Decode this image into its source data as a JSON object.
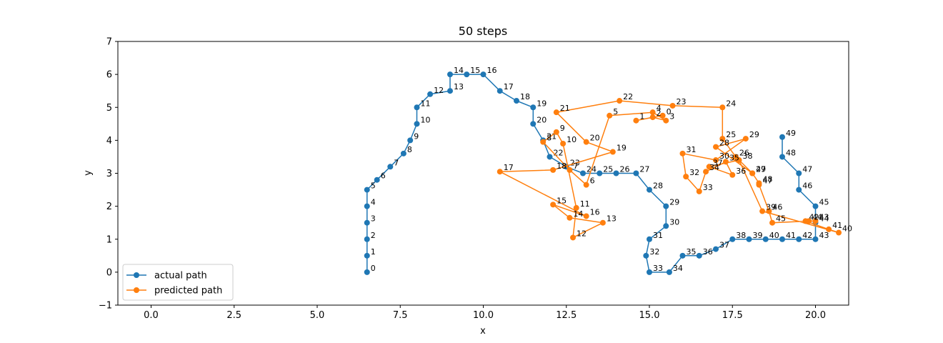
{
  "chart_data": {
    "type": "line",
    "title": "50 steps",
    "xlabel": "x",
    "ylabel": "y",
    "xlim": [
      -1.0,
      21.0
    ],
    "ylim": [
      -1,
      7
    ],
    "xticks": [
      0.0,
      2.5,
      5.0,
      7.5,
      10.0,
      12.5,
      15.0,
      17.5,
      20.0
    ],
    "xtick_labels": [
      "0.0",
      "2.5",
      "5.0",
      "7.5",
      "10.0",
      "12.5",
      "15.0",
      "17.5",
      "20.0"
    ],
    "yticks": [
      -1,
      0,
      1,
      2,
      3,
      4,
      5,
      6,
      7
    ],
    "ytick_labels": [
      "−1",
      "0",
      "1",
      "2",
      "3",
      "4",
      "5",
      "6",
      "7"
    ],
    "grid": false,
    "legend_position": "lower-left",
    "series": [
      {
        "name": "actual path",
        "color": "#1f77b4",
        "x": [
          6.5,
          6.5,
          6.5,
          6.5,
          6.5,
          6.5,
          6.8,
          7.2,
          7.6,
          7.8,
          8.0,
          8.0,
          8.4,
          9.0,
          9.0,
          9.5,
          10.0,
          10.5,
          11.0,
          11.5,
          11.5,
          11.8,
          12.0,
          12.5,
          13.0,
          13.5,
          14.0,
          14.6,
          15.0,
          15.5,
          15.5,
          15.0,
          14.9,
          15.0,
          15.6,
          16.0,
          16.5,
          17.0,
          17.5,
          18.0,
          18.5,
          19.0,
          19.5,
          20.0,
          20.0,
          20.0,
          19.5,
          19.5,
          19.0,
          19.0
        ],
        "y": [
          0.0,
          0.5,
          1.0,
          1.5,
          2.0,
          2.5,
          2.8,
          3.2,
          3.6,
          4.0,
          4.5,
          5.0,
          5.4,
          5.5,
          6.0,
          6.0,
          6.0,
          5.5,
          5.2,
          5.0,
          4.5,
          4.0,
          3.5,
          3.2,
          3.0,
          3.0,
          3.0,
          3.0,
          2.5,
          2.0,
          1.4,
          1.0,
          0.5,
          0.0,
          0.0,
          0.5,
          0.5,
          0.7,
          1.0,
          1.0,
          1.0,
          1.0,
          1.0,
          1.0,
          1.5,
          2.0,
          2.5,
          3.0,
          3.5,
          4.1
        ],
        "labels": [
          "0",
          "1",
          "2",
          "3",
          "4",
          "5",
          "6",
          "7",
          "8",
          "9",
          "10",
          "11",
          "12",
          "13",
          "14",
          "15",
          "16",
          "17",
          "18",
          "19",
          "20",
          "21",
          "22",
          "23",
          "24",
          "25",
          "26",
          "27",
          "28",
          "29",
          "30",
          "31",
          "32",
          "33",
          "34",
          "35",
          "36",
          "37",
          "38",
          "39",
          "40",
          "41",
          "42",
          "43",
          "44",
          "45",
          "46",
          "47",
          "48",
          "49"
        ]
      },
      {
        "name": "predicted path",
        "color": "#ff7f0e",
        "x": [
          15.4,
          14.6,
          15.1,
          15.5,
          15.1,
          13.8,
          13.1,
          12.6,
          11.8,
          12.2,
          12.4,
          12.8,
          12.7,
          13.6,
          12.6,
          12.1,
          13.1,
          10.5,
          12.1,
          13.9,
          13.1,
          12.2,
          14.1,
          15.7,
          17.2,
          17.2,
          17.6,
          18.1,
          17.0,
          17.9,
          17.0,
          16.0,
          16.1,
          16.5,
          16.7,
          17.3,
          17.5,
          16.8,
          17.7,
          18.4,
          20.7,
          20.4,
          19.7,
          20.0,
          19.8,
          18.7,
          18.6,
          18.3,
          18.3,
          18.1
        ],
        "y": [
          4.75,
          4.6,
          4.7,
          4.6,
          4.85,
          4.75,
          2.65,
          3.1,
          3.95,
          4.25,
          3.9,
          1.95,
          1.05,
          1.5,
          1.65,
          2.05,
          1.7,
          3.05,
          3.1,
          3.65,
          3.95,
          4.85,
          5.2,
          5.05,
          5.0,
          4.05,
          3.5,
          3.0,
          3.8,
          4.05,
          3.4,
          3.6,
          2.9,
          2.45,
          3.05,
          3.35,
          2.95,
          3.2,
          3.4,
          1.85,
          1.2,
          1.3,
          1.55,
          1.55,
          1.55,
          1.5,
          1.85,
          2.65,
          2.7,
          3.0
        ],
        "labels": [
          "0",
          "1",
          "2",
          "3",
          "4",
          "5",
          "6",
          "7",
          "8",
          "9",
          "10",
          "11",
          "12",
          "13",
          "14",
          "15",
          "16",
          "17",
          "18",
          "19",
          "20",
          "21",
          "22",
          "23",
          "24",
          "25",
          "26",
          "27",
          "28",
          "29",
          "30",
          "31",
          "32",
          "33",
          "34",
          "35",
          "36",
          "37",
          "38",
          "39",
          "40",
          "41",
          "42",
          "43",
          "44",
          "45",
          "46",
          "47",
          "48",
          "49"
        ]
      }
    ]
  }
}
